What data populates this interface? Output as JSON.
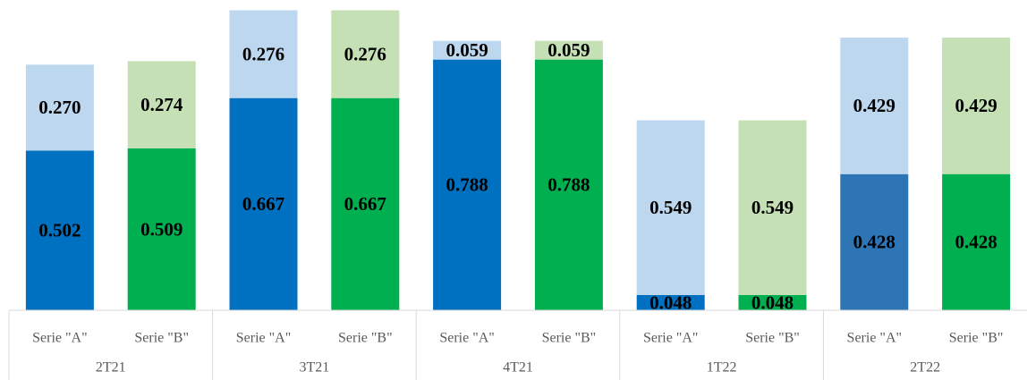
{
  "chart_data": {
    "type": "stacked-bar",
    "categories": [
      "Serie \"A\"",
      "Serie \"B\"",
      "Serie \"A\"",
      "Serie \"B\"",
      "Serie \"A\"",
      "Serie \"B\"",
      "Serie \"A\"",
      "Serie \"B\"",
      "Serie \"A\"",
      "Serie \"B\""
    ],
    "groups": [
      "2T21",
      "3T21",
      "4T21",
      "1T22",
      "2T22"
    ],
    "ylim": [
      0,
      0.95
    ],
    "series": [
      {
        "values": [
          0.502,
          0.509,
          0.667,
          0.667,
          0.788,
          0.788,
          0.048,
          0.048,
          0.428,
          0.428
        ],
        "value_labels": [
          "0.502",
          "0.509",
          "0.667",
          "0.667",
          "0.788",
          "0.788",
          "0.048",
          "0.048",
          "0.428",
          "0.428"
        ],
        "colors": [
          "#0070c0",
          "#00b050",
          "#0070c0",
          "#00b050",
          "#0070c0",
          "#00b050",
          "#0070c0",
          "#00b050",
          "#2e75b6",
          "#00b050"
        ]
      },
      {
        "values": [
          0.27,
          0.274,
          0.276,
          0.276,
          0.059,
          0.059,
          0.549,
          0.549,
          0.429,
          0.429
        ],
        "value_labels": [
          "0.270",
          "0.274",
          "0.276",
          "0.276",
          "0.059",
          "0.059",
          "0.549",
          "0.549",
          "0.429",
          "0.429"
        ],
        "colors": [
          "#bdd7ee",
          "#c5e0b4",
          "#bdd7ee",
          "#c5e0b4",
          "#bdd7ee",
          "#c5e0b4",
          "#bdd7ee",
          "#c5e0b4",
          "#bdd7ee",
          "#c5e0b4"
        ]
      }
    ]
  }
}
